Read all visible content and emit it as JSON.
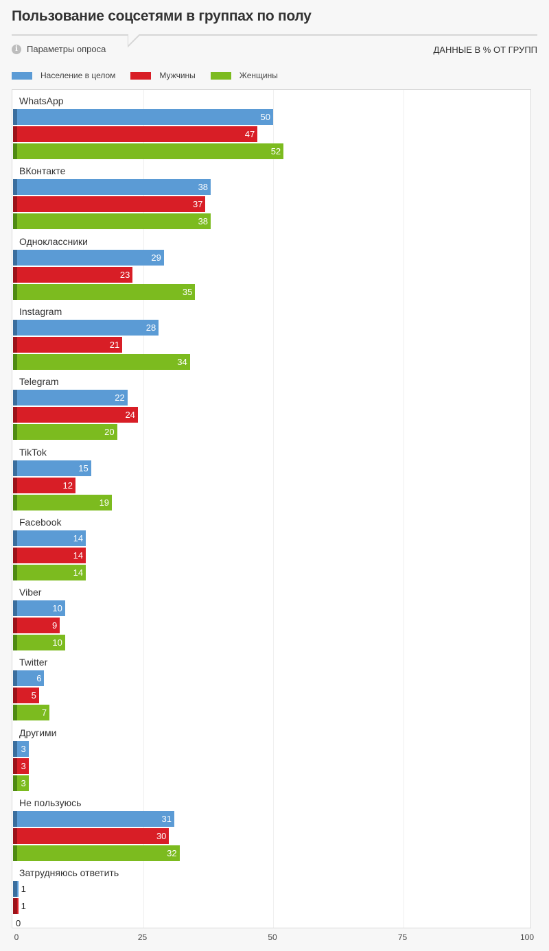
{
  "header": {
    "title": "Пользование соцсетями в группах по полу",
    "params_label": "Параметры опроса",
    "units_label": "ДАННЫЕ В % ОТ ГРУПП"
  },
  "chart_data": {
    "type": "bar",
    "orientation": "horizontal",
    "xlim": [
      0,
      100
    ],
    "xticks": [
      0,
      25,
      50,
      75,
      100
    ],
    "categories": [
      "WhatsApp",
      "ВКонтакте",
      "Одноклассники",
      "Instagram",
      "Telegram",
      "TikTok",
      "Facebook",
      "Viber",
      "Twitter",
      "Другими",
      "Не пользуюсь",
      "Затрудняюсь ответить"
    ],
    "series": [
      {
        "name": "Население в целом",
        "color": "#5b9bd5",
        "stub_color": "#3a6e9e",
        "values": [
          50,
          38,
          29,
          28,
          22,
          15,
          14,
          10,
          6,
          3,
          31,
          1
        ]
      },
      {
        "name": "Мужчины",
        "color": "#d81e26",
        "stub_color": "#9c1219",
        "values": [
          47,
          37,
          23,
          21,
          24,
          12,
          14,
          9,
          5,
          3,
          30,
          1
        ]
      },
      {
        "name": "Женщины",
        "color": "#7cbb1f",
        "stub_color": "#4f8a12",
        "values": [
          52,
          38,
          35,
          34,
          20,
          19,
          14,
          10,
          7,
          3,
          32,
          0
        ]
      }
    ],
    "legend_position": "top-left",
    "grid": true
  }
}
